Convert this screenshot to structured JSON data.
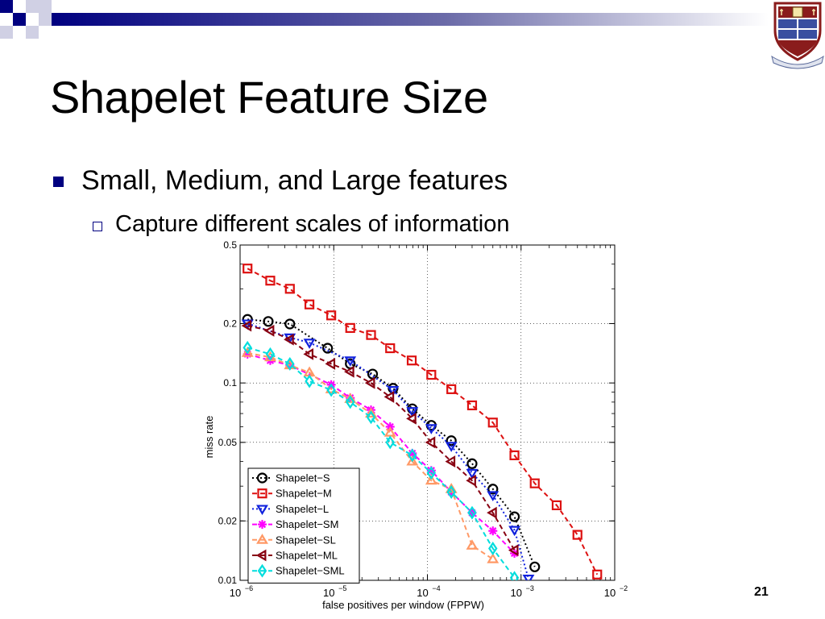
{
  "slide": {
    "title": "Shapelet Feature Size",
    "bullets": [
      {
        "level": 1,
        "text": "Small, Medium, and Large features"
      },
      {
        "level": 2,
        "text": "Capture different scales of information"
      }
    ],
    "page_number": "21",
    "accent_color": "#000080",
    "logo_icon": "university-crest-icon"
  },
  "chart_data": {
    "type": "line",
    "title": "",
    "xlabel": "false positives per window (FPPW)",
    "ylabel": "miss rate",
    "x_scale": "log",
    "y_scale": "log",
    "xlim": [
      1e-06,
      0.01
    ],
    "ylim": [
      0.01,
      0.5
    ],
    "x_ticks": [
      1e-06,
      1e-05,
      0.0001,
      0.001,
      0.01
    ],
    "x_tick_labels": [
      {
        "base": "10",
        "exp": "−6"
      },
      {
        "base": "10",
        "exp": "−5"
      },
      {
        "base": "10",
        "exp": "−4"
      },
      {
        "base": "10",
        "exp": "−3"
      },
      {
        "base": "10",
        "exp": "−2"
      }
    ],
    "y_ticks": [
      0.01,
      0.02,
      0.05,
      0.1,
      0.2,
      0.5
    ],
    "y_tick_labels": [
      "0.01",
      "0.02",
      "0.05",
      "0.1",
      "0.2",
      "0.5"
    ],
    "grid": true,
    "legend_position": "bottom-left",
    "series": [
      {
        "name": "Shapelet−S",
        "color": "#000000",
        "marker": "circle",
        "dash": "2,3",
        "x": [
          1.2e-06,
          2e-06,
          3.4e-06,
          8.6e-06,
          1.5e-05,
          2.6e-05,
          4.3e-05,
          6.9e-05,
          0.00011,
          0.00018,
          0.0003,
          0.0005,
          0.00085,
          0.0014
        ],
        "y": [
          0.21,
          0.205,
          0.199,
          0.15,
          0.125,
          0.111,
          0.094,
          0.074,
          0.061,
          0.051,
          0.039,
          0.029,
          0.021,
          0.0117
        ]
      },
      {
        "name": "Shapelet−M",
        "color": "#dd1111",
        "marker": "square",
        "dash": "6,4",
        "x": [
          1.2e-06,
          2.1e-06,
          3.4e-06,
          5.5e-06,
          9.4e-06,
          1.5e-05,
          2.5e-05,
          4e-05,
          6.8e-05,
          0.00011,
          0.00018,
          0.0003,
          0.0005,
          0.00085,
          0.0014,
          0.0024,
          0.004,
          0.0065
        ],
        "y": [
          0.38,
          0.33,
          0.3,
          0.25,
          0.22,
          0.19,
          0.175,
          0.15,
          0.13,
          0.11,
          0.093,
          0.077,
          0.063,
          0.043,
          0.031,
          0.024,
          0.017,
          0.0107
        ]
      },
      {
        "name": "Shapelet−L",
        "color": "#1122dd",
        "marker": "triangle-down",
        "dash": "2,3",
        "x": [
          1.2e-06,
          3.4e-06,
          5.5e-06,
          1.5e-05,
          4.3e-05,
          6.9e-05,
          0.00011,
          0.00018,
          0.0003,
          0.0005,
          0.00085,
          0.0012
        ],
        "y": [
          0.2,
          0.17,
          0.16,
          0.13,
          0.092,
          0.072,
          0.059,
          0.048,
          0.035,
          0.027,
          0.018,
          0.0102
        ]
      },
      {
        "name": "Shapelet−SM",
        "color": "#ff00ff",
        "marker": "star",
        "dash": "6,4",
        "x": [
          1.2e-06,
          2.1e-06,
          3.4e-06,
          9.4e-06,
          1.5e-05,
          2.5e-05,
          4e-05,
          6.9e-05,
          0.00011,
          0.00018,
          0.0003,
          0.0005,
          0.00085
        ],
        "y": [
          0.14,
          0.13,
          0.123,
          0.098,
          0.084,
          0.073,
          0.06,
          0.044,
          0.036,
          0.028,
          0.022,
          0.0178,
          0.0137
        ]
      },
      {
        "name": "Shapelet−SL",
        "color": "#ff9966",
        "marker": "triangle-up",
        "dash": "6,4",
        "x": [
          1.2e-06,
          2.1e-06,
          3.4e-06,
          5.5e-06,
          9.4e-06,
          1.5e-05,
          2.5e-05,
          4e-05,
          6.9e-05,
          0.00011,
          0.00018,
          0.0003,
          0.0005
        ],
        "y": [
          0.142,
          0.135,
          0.123,
          0.113,
          0.093,
          0.083,
          0.07,
          0.056,
          0.04,
          0.032,
          0.029,
          0.015,
          0.0128
        ]
      },
      {
        "name": "Shapelet−ML",
        "color": "#880011",
        "marker": "triangle-left",
        "dash": "6,4",
        "x": [
          1.2e-06,
          2.1e-06,
          3.4e-06,
          5.5e-06,
          9.4e-06,
          1.5e-05,
          2.5e-05,
          4e-05,
          6.9e-05,
          0.00011,
          0.00018,
          0.0003,
          0.0005,
          0.00085
        ],
        "y": [
          0.195,
          0.184,
          0.166,
          0.14,
          0.125,
          0.114,
          0.1,
          0.085,
          0.066,
          0.05,
          0.04,
          0.032,
          0.022,
          0.0142
        ]
      },
      {
        "name": "Shapelet−SML",
        "color": "#00dddd",
        "marker": "diamond",
        "dash": "6,4",
        "x": [
          1.2e-06,
          2.1e-06,
          3.4e-06,
          5.5e-06,
          9.4e-06,
          1.5e-05,
          2.5e-05,
          4e-05,
          6.9e-05,
          0.00011,
          0.00018,
          0.0003,
          0.0005,
          0.00085
        ],
        "y": [
          0.151,
          0.14,
          0.125,
          0.102,
          0.092,
          0.08,
          0.067,
          0.05,
          0.043,
          0.035,
          0.028,
          0.022,
          0.0145,
          0.0103
        ]
      }
    ]
  }
}
